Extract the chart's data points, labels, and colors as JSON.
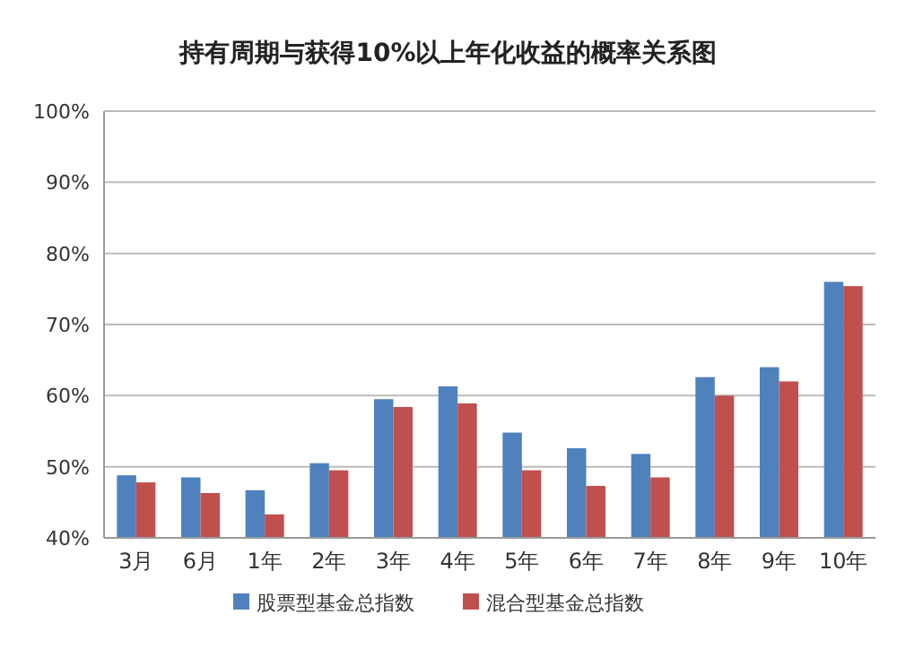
{
  "chart_data": {
    "type": "bar",
    "title": "持有周期与获得10%以上年化收益的概率关系图",
    "categories": [
      "3月",
      "6月",
      "1年",
      "2年",
      "3年",
      "4年",
      "5年",
      "6年",
      "7年",
      "8年",
      "9年",
      "10年"
    ],
    "series": [
      {
        "name": "股票型基金总指数",
        "color": "#4f81bd",
        "values": [
          48.8,
          48.5,
          46.7,
          50.5,
          59.5,
          61.3,
          54.8,
          52.6,
          51.8,
          62.6,
          64,
          76
        ]
      },
      {
        "name": "混合型基金总指数",
        "color": "#c0504d",
        "values": [
          47.8,
          46.3,
          43.3,
          49.5,
          58.4,
          58.9,
          49.5,
          47.3,
          48.5,
          60,
          62,
          75.4
        ]
      }
    ],
    "ylim": [
      40,
      100
    ],
    "yticks": [
      {
        "value": 40,
        "label": "40%"
      },
      {
        "value": 50,
        "label": "50%"
      },
      {
        "value": 60,
        "label": "60%"
      },
      {
        "value": 70,
        "label": "70%"
      },
      {
        "value": 80,
        "label": "80%"
      },
      {
        "value": 90,
        "label": "90%"
      },
      {
        "value": 100,
        "label": "100%"
      }
    ],
    "grid": "y",
    "legend": "bottom"
  }
}
